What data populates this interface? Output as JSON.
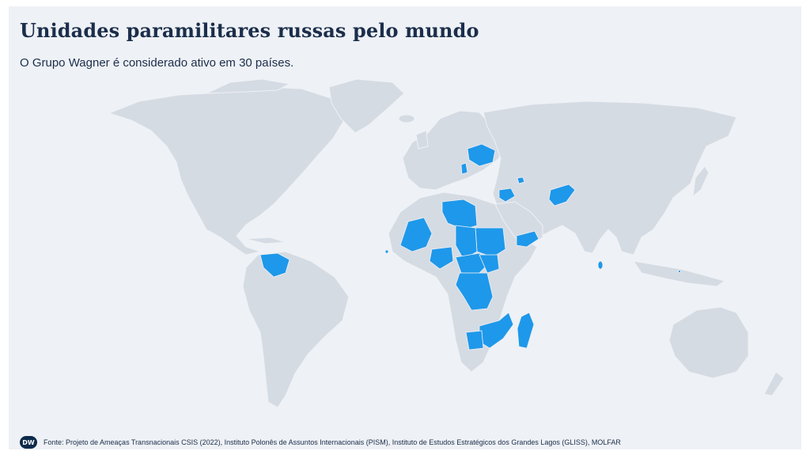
{
  "title": "Unidades paramilitares russas pelo mundo",
  "subtitle": "O Grupo Wagner é considerado ativo em 30 países.",
  "footer": {
    "logo_text": "DW",
    "source": "Fonte: Projeto de Ameaças Transnacionais CSIS (2022), Instituto Polonês de Assuntos Internacionais (PISM), Instituto de Estudos Estratégicos dos Grandes Lagos (GLISS), MOLFAR"
  },
  "colors": {
    "background": "#eef1f5",
    "land": "#d5dbe3",
    "active_country": "#1e98ea",
    "title": "#1b2e4b"
  }
}
